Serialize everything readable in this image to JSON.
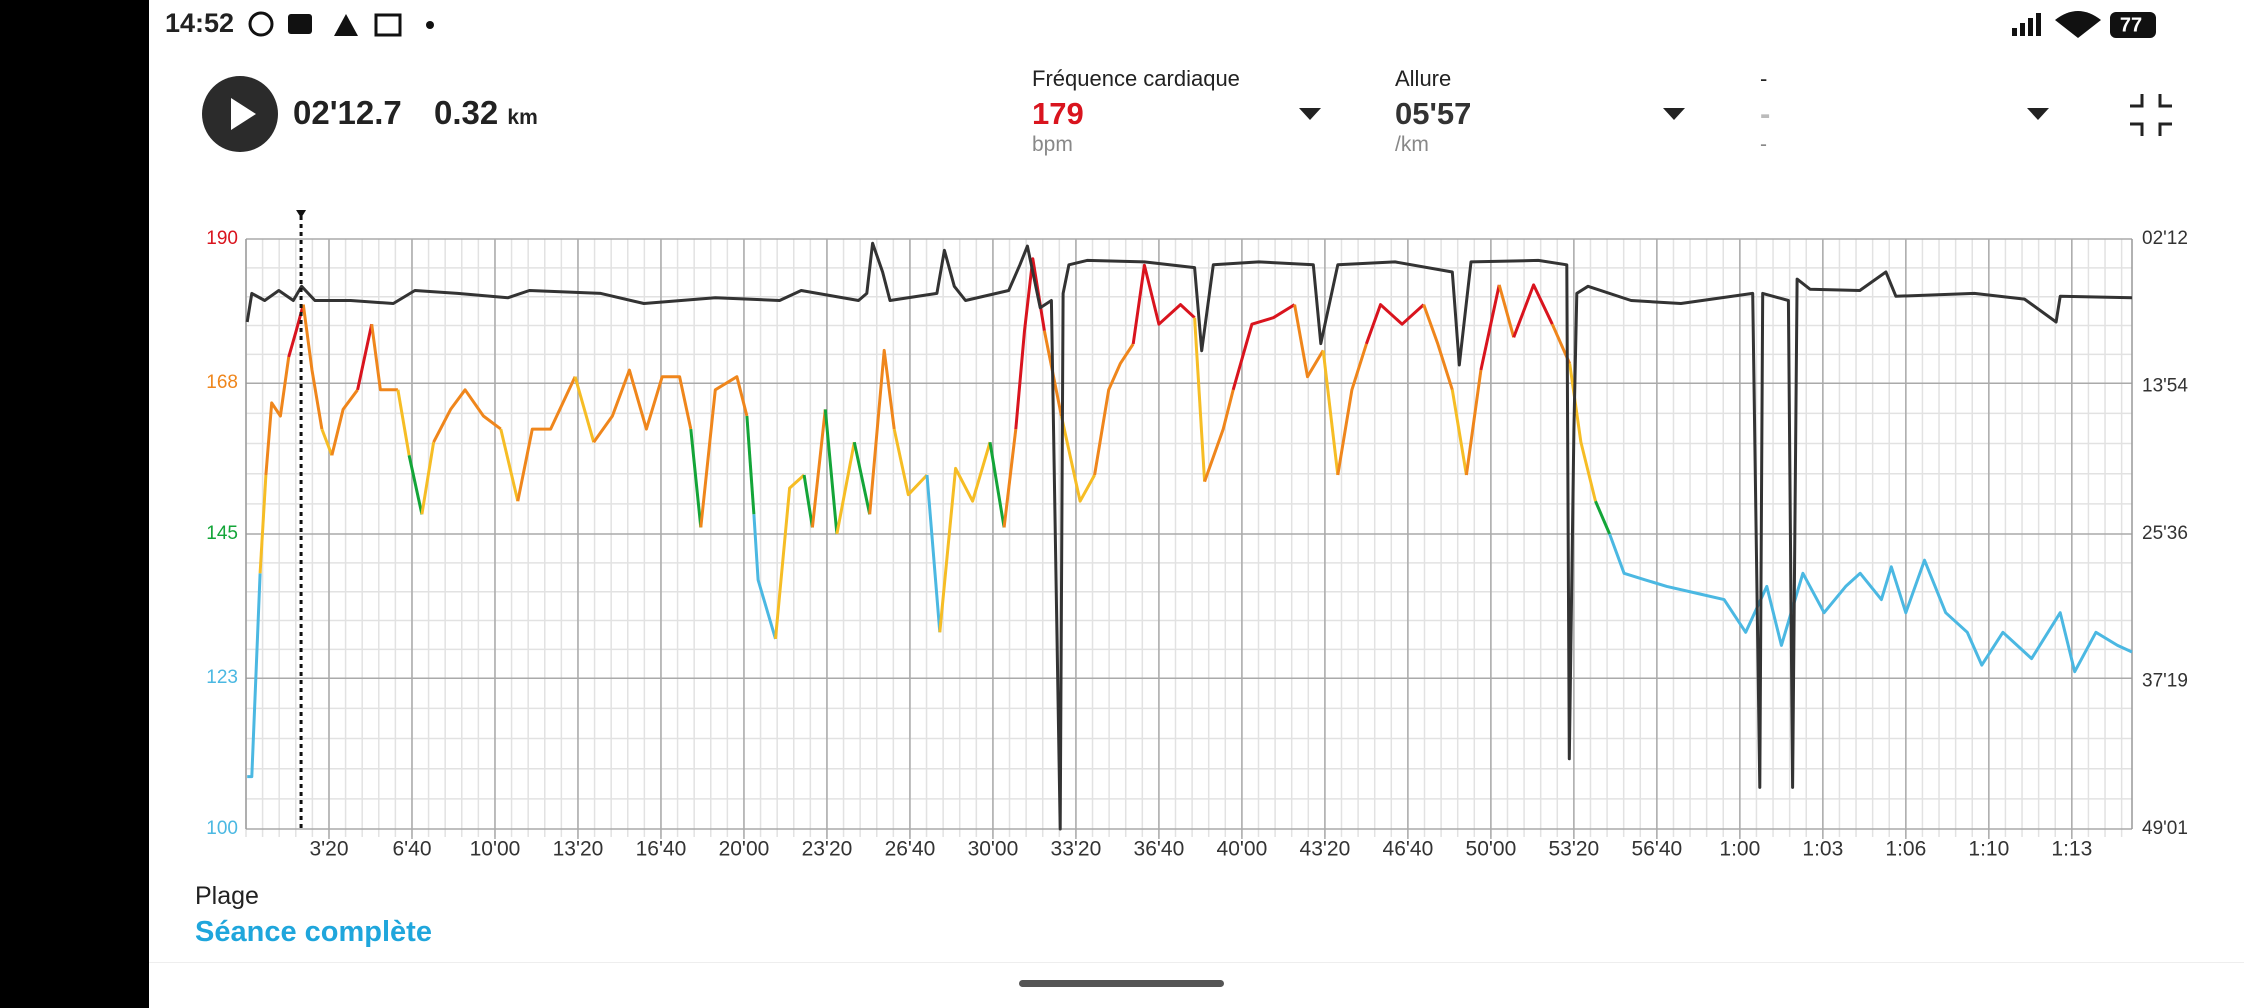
{
  "status_bar": {
    "time": "14:52",
    "battery": "77"
  },
  "header": {
    "elapsed": {
      "value": 132.7,
      "label": "02'12.7"
    },
    "distance": "0.32",
    "distance_unit": "km",
    "metrics": [
      {
        "title": "Fréquence cardiaque",
        "value": "179",
        "unit": "bpm",
        "color": "#d9141e"
      },
      {
        "title": "Allure",
        "value": "05'57",
        "unit": "/km",
        "color": "#333333"
      },
      {
        "title": "-",
        "value": "-",
        "unit": "-",
        "color": "#bbbbbb"
      }
    ]
  },
  "chart_data": {
    "type": "line",
    "xlim": [
      0,
      4545
    ],
    "xticks": [
      {
        "value": 200,
        "label": "3'20"
      },
      {
        "value": 400,
        "label": "6'40"
      },
      {
        "value": 600,
        "label": "10'00"
      },
      {
        "value": 800,
        "label": "13'20"
      },
      {
        "value": 1000,
        "label": "16'40"
      },
      {
        "value": 1200,
        "label": "20'00"
      },
      {
        "value": 1400,
        "label": "23'20"
      },
      {
        "value": 1600,
        "label": "26'40"
      },
      {
        "value": 1800,
        "label": "30'00"
      },
      {
        "value": 2000,
        "label": "33'20"
      },
      {
        "value": 2200,
        "label": "36'40"
      },
      {
        "value": 2400,
        "label": "40'00"
      },
      {
        "value": 2600,
        "label": "43'20"
      },
      {
        "value": 2800,
        "label": "46'40"
      },
      {
        "value": 3000,
        "label": "50'00"
      },
      {
        "value": 3200,
        "label": "53'20"
      },
      {
        "value": 3400,
        "label": "56'40"
      },
      {
        "value": 3600,
        "label": "1:00"
      },
      {
        "value": 3800,
        "label": "1:03"
      },
      {
        "value": 4000,
        "label": "1:06"
      },
      {
        "value": 4200,
        "label": "1:10"
      },
      {
        "value": 4400,
        "label": "1:13"
      }
    ],
    "ylim": [
      100,
      190
    ],
    "yticks": [
      100,
      123,
      145,
      168,
      190
    ],
    "ytick_colors": [
      "#4bb8e2",
      "#4bb8e2",
      "#13a538",
      "#ef861c",
      "#d9141e"
    ],
    "y2lim": [
      132,
      2941
    ],
    "y2_inverted": true,
    "y2ticks": [
      {
        "value": 132,
        "label": "02'12"
      },
      {
        "value": 834,
        "label": "13'54"
      },
      {
        "value": 1536,
        "label": "25'36"
      },
      {
        "value": 2239,
        "label": "37'19"
      },
      {
        "value": 2941,
        "label": "49'01"
      }
    ],
    "grid": true,
    "series": [
      {
        "x": [
          3,
          14,
          34,
          48,
          62,
          83,
          103,
          121,
          138,
          159,
          183,
          207,
          234,
          269,
          303,
          324,
          366,
          393,
          424,
          452,
          493,
          528,
          572,
          614,
          655,
          690,
          734,
          793,
          838,
          883,
          924,
          965,
          1003,
          1045,
          1072,
          1096,
          1131,
          1183,
          1207,
          1224,
          1234,
          1276,
          1310,
          1345,
          1365,
          1396,
          1424,
          1466,
          1503,
          1538,
          1562,
          1596,
          1641,
          1672,
          1710,
          1751,
          1793,
          1827,
          1855,
          1876,
          1896,
          1924,
          1965,
          2010,
          2045,
          2079,
          2107,
          2138,
          2165,
          2200,
          2252,
          2286,
          2310,
          2355,
          2379,
          2424,
          2476,
          2527,
          2558,
          2596,
          2631,
          2665,
          2700,
          2734,
          2786,
          2838,
          2872,
          2907,
          2941,
          2976,
          3020,
          3055,
          3103,
          3148,
          3190,
          3217,
          3252,
          3286,
          3321,
          3372,
          3424,
          3493,
          3562,
          3614,
          3665,
          3700,
          3752,
          3803,
          3855,
          3890,
          3941,
          3965,
          4000,
          4045,
          4096,
          4148,
          4183,
          4234,
          4303,
          4372,
          4407,
          4458,
          4510,
          4545
        ],
        "values": [
          108,
          108,
          139,
          154,
          165,
          163,
          172,
          176,
          180,
          170,
          161,
          157,
          164,
          167,
          177,
          167,
          167,
          157,
          148,
          159,
          164,
          167,
          163,
          161,
          150,
          161,
          161,
          169,
          159,
          163,
          170,
          161,
          169,
          169,
          161,
          146,
          167,
          169,
          163,
          148,
          138,
          129,
          152,
          154,
          146,
          164,
          145,
          159,
          148,
          173,
          161,
          151,
          154,
          130,
          155,
          150,
          159,
          146,
          161,
          176,
          187,
          176,
          163,
          150,
          154,
          167,
          171,
          174,
          186,
          177,
          180,
          178,
          153,
          161,
          167,
          177,
          178,
          180,
          169,
          173,
          154,
          167,
          174,
          180,
          177,
          180,
          174,
          167,
          154,
          170,
          183,
          175,
          183,
          177,
          171,
          159,
          150,
          145,
          139,
          138,
          137,
          136,
          135,
          130,
          137,
          128,
          139,
          133,
          137,
          139,
          135,
          140,
          133,
          141,
          133,
          130,
          125,
          130,
          126,
          133,
          124,
          130,
          128,
          127
        ],
        "colors": [
          "#4bb8e2",
          "#4bb8e2",
          "#4bb8e2",
          "#f6bd25",
          "#ef861c",
          "#ef861c",
          "#ef861c",
          "#d9141e",
          "#d9141e",
          "#ef861c",
          "#ef861c",
          "#f6bd25",
          "#ef861c",
          "#ef861c",
          "#d9141e",
          "#ef861c",
          "#ef861c",
          "#f6bd25",
          "#13a538",
          "#f6bd25",
          "#ef861c",
          "#ef861c",
          "#ef861c",
          "#ef861c",
          "#f6bd25",
          "#ef861c",
          "#ef861c",
          "#ef861c",
          "#f6bd25",
          "#ef861c",
          "#ef861c",
          "#ef861c",
          "#ef861c",
          "#ef861c",
          "#ef861c",
          "#13a538",
          "#ef861c",
          "#ef861c",
          "#ef861c",
          "#13a538",
          "#4bb8e2",
          "#4bb8e2",
          "#f6bd25",
          "#f6bd25",
          "#13a538",
          "#ef861c",
          "#13a538",
          "#f6bd25",
          "#13a538",
          "#ef861c",
          "#ef861c",
          "#f6bd25",
          "#f6bd25",
          "#4bb8e2",
          "#f6bd25",
          "#f6bd25",
          "#f6bd25",
          "#13a538",
          "#ef861c",
          "#d9141e",
          "#d9141e",
          "#d9141e",
          "#ef861c",
          "#f6bd25",
          "#f6bd25",
          "#ef861c",
          "#ef861c",
          "#ef861c",
          "#d9141e",
          "#d9141e",
          "#d9141e",
          "#d9141e",
          "#f6bd25",
          "#ef861c",
          "#ef861c",
          "#d9141e",
          "#d9141e",
          "#d9141e",
          "#ef861c",
          "#ef861c",
          "#f6bd25",
          "#ef861c",
          "#ef861c",
          "#d9141e",
          "#d9141e",
          "#d9141e",
          "#ef861c",
          "#ef861c",
          "#f6bd25",
          "#ef861c",
          "#d9141e",
          "#ef861c",
          "#d9141e",
          "#d9141e",
          "#ef861c",
          "#f6bd25",
          "#f6bd25",
          "#13a538",
          "#4bb8e2",
          "#4bb8e2",
          "#4bb8e2",
          "#4bb8e2",
          "#4bb8e2",
          "#4bb8e2",
          "#4bb8e2",
          "#4bb8e2",
          "#4bb8e2",
          "#4bb8e2",
          "#4bb8e2",
          "#4bb8e2",
          "#4bb8e2",
          "#4bb8e2",
          "#4bb8e2",
          "#4bb8e2",
          "#4bb8e2",
          "#4bb8e2",
          "#4bb8e2",
          "#4bb8e2",
          "#4bb8e2",
          "#4bb8e2",
          "#4bb8e2",
          "#4bb8e2",
          "#4bb8e2",
          "#4bb8e2"
        ]
      },
      {
        "axis": "y2",
        "color": "#333333",
        "x": [
          3,
          14,
          45,
          79,
          114,
          134,
          166,
          252,
          355,
          407,
          510,
          631,
          683,
          855,
          959,
          1131,
          1286,
          1338,
          1476,
          1496,
          1510,
          1534,
          1552,
          1665,
          1683,
          1707,
          1734,
          1838,
          1865,
          1883,
          1896,
          1914,
          1941,
          1962,
          1969,
          1983,
          2027,
          2165,
          2286,
          2303,
          2331,
          2441,
          2572,
          2590,
          2631,
          2769,
          2907,
          2924,
          2952,
          3114,
          3183,
          3189,
          3200,
          3207,
          3234,
          3338,
          3458,
          3631,
          3648,
          3655,
          3717,
          3727,
          3738,
          3769,
          3889,
          3952,
          3976,
          4165,
          4286,
          4362,
          4372,
          4545
        ],
        "values": [
          527,
          391,
          425,
          377,
          425,
          357,
          425,
          425,
          439,
          377,
          391,
          412,
          377,
          391,
          439,
          412,
          425,
          377,
          425,
          391,
          152,
          289,
          425,
          391,
          186,
          357,
          425,
          377,
          255,
          166,
          289,
          459,
          425,
          2941,
          391,
          255,
          234,
          241,
          268,
          664,
          255,
          241,
          255,
          630,
          255,
          241,
          289,
          732,
          241,
          234,
          255,
          2607,
          1039,
          391,
          357,
          425,
          439,
          391,
          2743,
          391,
          425,
          2743,
          323,
          371,
          377,
          289,
          405,
          391,
          418,
          527,
          405,
          412
        ]
      }
    ]
  },
  "range": {
    "label": "Plage",
    "value": "Séance complète"
  }
}
